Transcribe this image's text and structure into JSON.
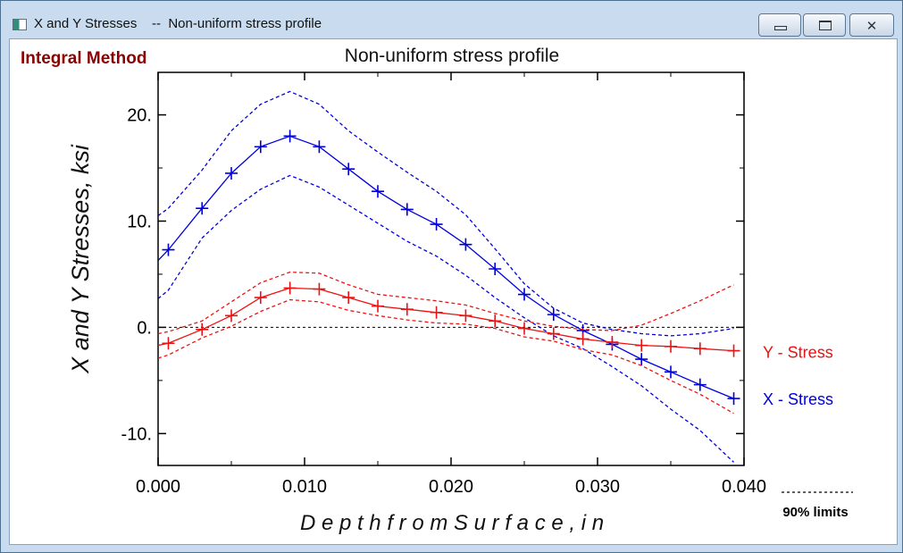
{
  "window": {
    "title": "X and Y Stresses    --  Non-uniform stress profile"
  },
  "method_label": "Integral Method",
  "legend_limits": "90%  limits",
  "chart_data": {
    "type": "line",
    "title": "Non-uniform stress profile",
    "xlabel": "D e p t h   f r o m   S u r f a c e ,   i n",
    "ylabel": "X and Y Stresses,    ksi",
    "xlim": [
      0,
      0.04
    ],
    "ylim": [
      -13,
      24
    ],
    "x_ticks": [
      {
        "v": 0,
        "label": "0.000"
      },
      {
        "v": 0.01,
        "label": "0.010"
      },
      {
        "v": 0.02,
        "label": "0.020"
      },
      {
        "v": 0.03,
        "label": "0.030"
      },
      {
        "v": 0.04,
        "label": "0.040"
      }
    ],
    "y_ticks": [
      {
        "v": 20,
        "label": "20."
      },
      {
        "v": 10,
        "label": "10."
      },
      {
        "v": 0,
        "label": "0."
      },
      {
        "v": -10,
        "label": "-10."
      }
    ],
    "zero_line": true,
    "series": [
      {
        "name": "X - Stress",
        "color": "#0000dd",
        "x": [
          0,
          0.0007,
          0.003,
          0.005,
          0.007,
          0.009,
          0.011,
          0.013,
          0.015,
          0.017,
          0.019,
          0.021,
          0.023,
          0.025,
          0.027,
          0.029,
          0.031,
          0.033,
          0.035,
          0.037,
          0.0393
        ],
        "y": [
          6.3,
          7.3,
          11.2,
          14.5,
          17.0,
          18.0,
          17.0,
          14.9,
          12.8,
          11.1,
          9.7,
          7.8,
          5.5,
          3.1,
          1.2,
          -0.3,
          -1.6,
          -3.0,
          -4.2,
          -5.4,
          -6.7
        ],
        "upper": [
          10.5,
          11.2,
          14.8,
          18.5,
          21.0,
          22.2,
          21.0,
          18.5,
          16.5,
          14.6,
          12.8,
          10.6,
          7.4,
          4.1,
          1.8,
          0.4,
          -0.2,
          -0.6,
          -0.8,
          -0.6,
          -0.1
        ],
        "lower": [
          2.7,
          3.5,
          8.4,
          11.0,
          13.0,
          14.3,
          13.2,
          11.5,
          9.8,
          8.1,
          6.7,
          4.9,
          2.8,
          0.9,
          -0.8,
          -2.0,
          -3.7,
          -5.5,
          -7.7,
          -9.7,
          -12.7
        ]
      },
      {
        "name": "Y - Stress",
        "color": "#ee1111",
        "x": [
          0,
          0.0007,
          0.003,
          0.005,
          0.007,
          0.009,
          0.011,
          0.013,
          0.015,
          0.017,
          0.019,
          0.021,
          0.023,
          0.025,
          0.027,
          0.029,
          0.031,
          0.033,
          0.035,
          0.037,
          0.0393
        ],
        "y": [
          -1.7,
          -1.5,
          -0.2,
          1.1,
          2.8,
          3.7,
          3.6,
          2.8,
          2.0,
          1.7,
          1.4,
          1.1,
          0.6,
          -0.1,
          -0.6,
          -1.1,
          -1.4,
          -1.7,
          -1.8,
          -2.0,
          -2.2
        ],
        "upper": [
          -0.6,
          -0.4,
          0.6,
          2.4,
          4.2,
          5.2,
          5.1,
          4.0,
          3.1,
          2.8,
          2.5,
          2.1,
          1.3,
          0.6,
          0.1,
          -0.2,
          -0.3,
          0.2,
          1.3,
          2.5,
          4.0
        ],
        "lower": [
          -2.9,
          -2.6,
          -1.0,
          0.1,
          1.5,
          2.6,
          2.4,
          1.6,
          1.1,
          0.7,
          0.4,
          0.3,
          -0.1,
          -0.9,
          -1.3,
          -2.1,
          -2.6,
          -3.6,
          -5.0,
          -6.3,
          -8.1
        ]
      }
    ],
    "limits_style": "dashed"
  }
}
